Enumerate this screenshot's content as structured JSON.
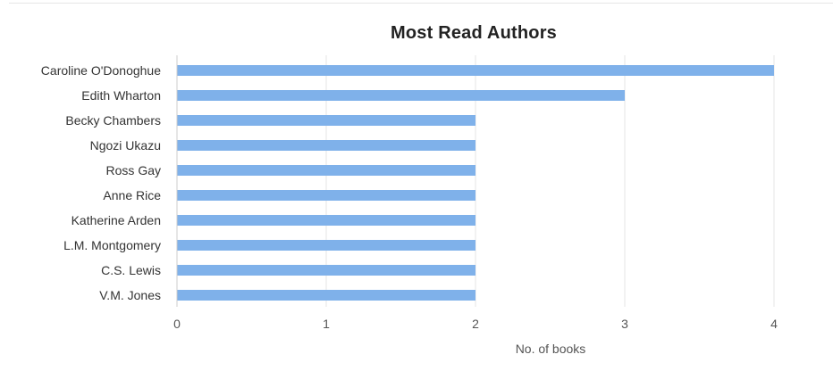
{
  "chart_data": {
    "type": "bar",
    "orientation": "horizontal",
    "title": "Most Read Authors",
    "xlabel": "No. of books",
    "ylabel": "",
    "categories": [
      "Caroline O'Donoghue",
      "Edith Wharton",
      "Becky Chambers",
      "Ngozi Ukazu",
      "Ross Gay",
      "Anne Rice",
      "Katherine Arden",
      "L.M. Montgomery",
      "C.S. Lewis",
      "V.M. Jones"
    ],
    "values": [
      4,
      3,
      2,
      2,
      2,
      2,
      2,
      2,
      2,
      2
    ],
    "xlim": [
      0,
      4
    ],
    "xticks": [
      "0",
      "1",
      "2",
      "3",
      "4"
    ],
    "grid": "vertical",
    "bar_color": "#7fb1ea"
  }
}
